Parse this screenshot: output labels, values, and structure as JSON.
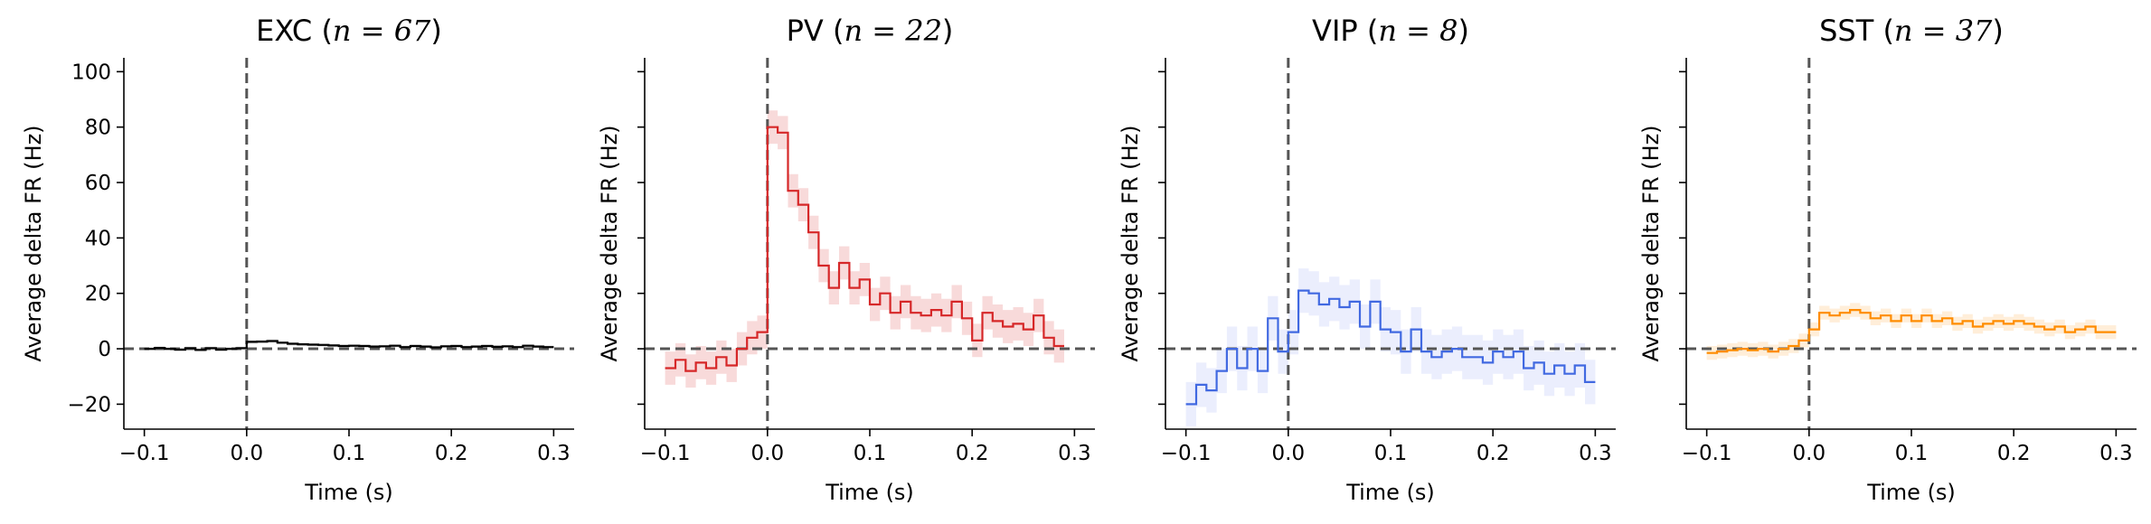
{
  "chart_data": [
    {
      "type": "line",
      "step": true,
      "title_main": "EXC (",
      "title_math": "n = 67",
      "title_end": ")",
      "xlabel": "Time (s)",
      "ylabel": "Average delta FR (Hz)",
      "xlim": [
        -0.12,
        0.32
      ],
      "ylim": [
        -29,
        105
      ],
      "xticks": [
        -0.1,
        0.0,
        0.1,
        0.2,
        0.3
      ],
      "xtick_labels": [
        "−0.1",
        "0.0",
        "0.1",
        "0.2",
        "0.3"
      ],
      "yticks": [
        -20,
        0,
        20,
        40,
        60,
        80,
        100
      ],
      "ytick_labels": [
        "−20",
        "0",
        "20",
        "40",
        "60",
        "80",
        "100"
      ],
      "show_ytick_labels": true,
      "reference_lines": {
        "x": 0,
        "y": 0,
        "style": "dashed"
      },
      "series": [
        {
          "color": "#000000",
          "band_color": "#cccccc",
          "x": [
            -0.095,
            -0.085,
            -0.075,
            -0.065,
            -0.055,
            -0.045,
            -0.035,
            -0.025,
            -0.015,
            -0.005,
            0.005,
            0.015,
            0.025,
            0.035,
            0.045,
            0.055,
            0.065,
            0.075,
            0.085,
            0.095,
            0.105,
            0.115,
            0.125,
            0.135,
            0.145,
            0.155,
            0.165,
            0.175,
            0.185,
            0.195,
            0.205,
            0.215,
            0.225,
            0.235,
            0.245,
            0.255,
            0.265,
            0.275,
            0.285,
            0.295
          ],
          "y": [
            0,
            0.3,
            0,
            -0.3,
            0.2,
            -0.4,
            0.2,
            -0.3,
            0,
            0.2,
            2.5,
            2.6,
            2.8,
            2.2,
            1.8,
            1.6,
            1.5,
            1.4,
            1.2,
            1.0,
            1.1,
            1.0,
            0.8,
            0.9,
            1.1,
            0.6,
            1.0,
            0.8,
            0.5,
            0.9,
            1.0,
            0.6,
            0.8,
            1.0,
            0.7,
            0.9,
            0.6,
            1.1,
            0.8,
            0.6
          ],
          "error": 0.6
        }
      ]
    },
    {
      "type": "line",
      "step": true,
      "title_main": "PV (",
      "title_math": "n = 22",
      "title_end": ")",
      "xlabel": "Time (s)",
      "ylabel": "Average delta FR (Hz)",
      "xlim": [
        -0.12,
        0.32
      ],
      "ylim": [
        -29,
        105
      ],
      "xticks": [
        -0.1,
        0.0,
        0.1,
        0.2,
        0.3
      ],
      "xtick_labels": [
        "−0.1",
        "0.0",
        "0.1",
        "0.2",
        "0.3"
      ],
      "yticks": [
        -20,
        0,
        20,
        40,
        60,
        80,
        100
      ],
      "ytick_labels": [
        "",
        "",
        "",
        "",
        "",
        "",
        ""
      ],
      "show_ytick_labels": false,
      "reference_lines": {
        "x": 0,
        "y": 0,
        "style": "dashed"
      },
      "series": [
        {
          "color": "#d62728",
          "band_color": "#f4c2c2",
          "x": [
            -0.095,
            -0.085,
            -0.075,
            -0.065,
            -0.055,
            -0.045,
            -0.035,
            -0.025,
            -0.015,
            -0.005,
            0.005,
            0.015,
            0.025,
            0.035,
            0.045,
            0.055,
            0.065,
            0.075,
            0.085,
            0.095,
            0.105,
            0.115,
            0.125,
            0.135,
            0.145,
            0.155,
            0.165,
            0.175,
            0.185,
            0.195,
            0.205,
            0.215,
            0.225,
            0.235,
            0.245,
            0.255,
            0.265,
            0.275,
            0.285
          ],
          "y": [
            -7,
            -4,
            -8,
            -5,
            -7,
            -3,
            -6,
            0,
            4,
            6,
            80,
            78,
            57,
            52,
            42,
            30,
            22,
            31,
            22,
            25,
            16,
            20,
            13,
            17,
            13,
            12,
            14,
            12,
            17,
            11,
            3,
            13,
            10,
            8,
            9,
            7,
            12,
            4,
            1
          ],
          "error": 6
        }
      ]
    },
    {
      "type": "line",
      "step": true,
      "title_main": "VIP (",
      "title_math": "n = 8",
      "title_end": ")",
      "xlabel": "Time (s)",
      "ylabel": "Average delta FR (Hz)",
      "xlim": [
        -0.12,
        0.32
      ],
      "ylim": [
        -29,
        105
      ],
      "xticks": [
        -0.1,
        0.0,
        0.1,
        0.2,
        0.3
      ],
      "xtick_labels": [
        "−0.1",
        "0.0",
        "0.1",
        "0.2",
        "0.3"
      ],
      "yticks": [
        -20,
        0,
        20,
        40,
        60,
        80,
        100
      ],
      "ytick_labels": [
        "",
        "",
        "",
        "",
        "",
        "",
        ""
      ],
      "show_ytick_labels": false,
      "reference_lines": {
        "x": 0,
        "y": 0,
        "style": "dashed"
      },
      "series": [
        {
          "color": "#4169e1",
          "band_color": "#dde3fb",
          "x": [
            -0.095,
            -0.085,
            -0.075,
            -0.065,
            -0.055,
            -0.045,
            -0.035,
            -0.025,
            -0.015,
            -0.005,
            0.005,
            0.015,
            0.025,
            0.035,
            0.045,
            0.055,
            0.065,
            0.075,
            0.085,
            0.095,
            0.105,
            0.115,
            0.125,
            0.135,
            0.145,
            0.155,
            0.165,
            0.175,
            0.185,
            0.195,
            0.205,
            0.215,
            0.225,
            0.235,
            0.245,
            0.255,
            0.265,
            0.275,
            0.285,
            0.295
          ],
          "y": [
            -20,
            -13,
            -15,
            -8,
            0,
            -7,
            0,
            -8,
            11,
            -1,
            6,
            21,
            20,
            16,
            18,
            15,
            17,
            8,
            17,
            7,
            6,
            -1,
            7,
            -1,
            -3,
            -1,
            0,
            -3,
            -3,
            -5,
            -1,
            -3,
            -1,
            -7,
            -5,
            -9,
            -6,
            -9,
            -6,
            -12
          ],
          "error": 8
        }
      ]
    },
    {
      "type": "line",
      "step": true,
      "title_main": "SST (",
      "title_math": "n = 37",
      "title_end": ")",
      "xlabel": "Time (s)",
      "ylabel": "Average delta FR (Hz)",
      "xlim": [
        -0.12,
        0.32
      ],
      "ylim": [
        -29,
        105
      ],
      "xticks": [
        -0.1,
        0.0,
        0.1,
        0.2,
        0.3
      ],
      "xtick_labels": [
        "−0.1",
        "0.0",
        "0.1",
        "0.2",
        "0.3"
      ],
      "yticks": [
        -20,
        0,
        20,
        40,
        60,
        80,
        100
      ],
      "ytick_labels": [
        "",
        "",
        "",
        "",
        "",
        "",
        ""
      ],
      "show_ytick_labels": false,
      "reference_lines": {
        "x": 0,
        "y": 0,
        "style": "dashed"
      },
      "series": [
        {
          "color": "#ff8c00",
          "band_color": "#ffe2c0",
          "x": [
            -0.095,
            -0.085,
            -0.075,
            -0.065,
            -0.055,
            -0.045,
            -0.035,
            -0.025,
            -0.015,
            -0.005,
            0.005,
            0.015,
            0.025,
            0.035,
            0.045,
            0.055,
            0.065,
            0.075,
            0.085,
            0.095,
            0.105,
            0.115,
            0.125,
            0.135,
            0.145,
            0.155,
            0.165,
            0.175,
            0.185,
            0.195,
            0.205,
            0.215,
            0.225,
            0.235,
            0.245,
            0.255,
            0.265,
            0.275,
            0.285,
            0.295
          ],
          "y": [
            -1.5,
            -1,
            -0.5,
            0,
            -0.5,
            0,
            -1,
            0,
            1,
            3,
            7,
            13,
            12,
            13,
            14,
            13,
            11,
            12,
            10,
            12,
            10,
            12,
            10,
            11,
            9,
            10,
            8,
            9,
            10,
            9,
            10,
            9,
            8,
            7,
            8,
            6,
            7,
            8,
            6,
            6
          ],
          "error": 2.5
        }
      ]
    }
  ]
}
